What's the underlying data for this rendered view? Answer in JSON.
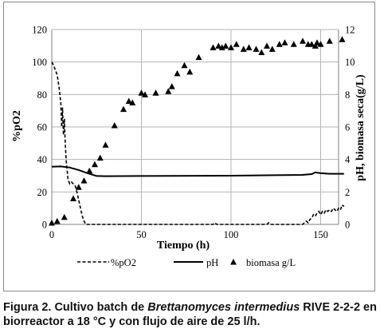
{
  "chart_data": {
    "type": "line",
    "xlabel": "Tiempo (h)",
    "ylabel_left": "%pO2",
    "ylabel_right": "pH, biomasa seca(g/L)",
    "xlim": [
      0,
      160
    ],
    "xticks": [
      "0",
      "50",
      "100",
      "150"
    ],
    "ylim_left": [
      0,
      120
    ],
    "yticks_left": [
      "0",
      "20",
      "40",
      "60",
      "80",
      "100",
      "120"
    ],
    "ylim_right": [
      0,
      12
    ],
    "yticks_right": [
      "0",
      "2",
      "4",
      "6",
      "8",
      "10",
      "12"
    ],
    "grid": true,
    "legend_position": "bottom",
    "series": [
      {
        "name": "%pO2",
        "axis": "left",
        "style": "dashed",
        "x": [
          0,
          1,
          2,
          3,
          4,
          5,
          5.5,
          6,
          6.5,
          7,
          7.5,
          8,
          9,
          10,
          11,
          12,
          13,
          14,
          15,
          16,
          17,
          18,
          19,
          20,
          25,
          30,
          40,
          60,
          80,
          90,
          91,
          92,
          100,
          110,
          120,
          121,
          122,
          130,
          140,
          142,
          143,
          144,
          145,
          146,
          147,
          148,
          149,
          150,
          151,
          152,
          153,
          154,
          155,
          156,
          157,
          158,
          159,
          160,
          161,
          162,
          163
        ],
        "y": [
          100,
          98,
          95,
          92,
          85,
          75,
          60,
          72,
          55,
          65,
          50,
          40,
          28,
          25,
          26,
          25,
          24,
          20,
          15,
          10,
          5,
          2,
          0,
          0,
          0,
          0,
          0,
          0,
          0,
          0,
          1,
          0,
          0,
          0,
          0,
          1,
          0,
          0,
          0,
          2,
          1,
          3,
          4,
          6,
          5,
          7,
          8,
          6,
          8,
          7,
          9,
          8,
          9,
          8,
          10,
          9,
          8,
          10,
          9,
          12,
          11
        ]
      },
      {
        "name": "pH",
        "axis": "right",
        "style": "solid",
        "x": [
          0,
          5,
          10,
          15,
          20,
          25,
          30,
          50,
          100,
          140,
          145,
          147,
          150,
          155,
          163
        ],
        "y": [
          3.55,
          3.57,
          3.5,
          3.35,
          3.15,
          2.98,
          2.97,
          2.98,
          3.0,
          3.05,
          3.1,
          3.2,
          3.15,
          3.12,
          3.12
        ]
      },
      {
        "name": "biomasa g/L",
        "axis": "right",
        "style": "marker",
        "marker": "triangle",
        "x": [
          0,
          3,
          7,
          12,
          15,
          18,
          21,
          24,
          27,
          30,
          35,
          40,
          43,
          45,
          50,
          52,
          58,
          65,
          67,
          70,
          74,
          77,
          82,
          90,
          93,
          95,
          97,
          100,
          103,
          107,
          110,
          114,
          117,
          120,
          123,
          127,
          130,
          135,
          140,
          143,
          145,
          147,
          148,
          150,
          155,
          162
        ],
        "y": [
          0.1,
          0.2,
          0.45,
          1.6,
          2.3,
          2.7,
          3.3,
          3.7,
          4.1,
          4.9,
          6.1,
          7.1,
          7.6,
          7.5,
          8.1,
          8.0,
          8.1,
          8.2,
          8.5,
          9.3,
          9.8,
          9.4,
          10.3,
          10.9,
          11.0,
          10.9,
          11.0,
          10.9,
          11.1,
          10.8,
          10.9,
          10.8,
          10.6,
          11.0,
          10.8,
          11.1,
          11.2,
          11.1,
          11.3,
          11.1,
          11.1,
          11.0,
          11.2,
          11.1,
          11.3,
          11.4
        ]
      }
    ]
  },
  "caption": {
    "prefix": "Figura 2. Cultivo batch de ",
    "species": "Brettanomyces intermedius",
    "suffix": " RIVE 2-2-2 en biorreactor a 18 °C y con flujo de aire de 25 l/h."
  },
  "colors": {
    "series": "#000000",
    "grid": "#b4b4b4",
    "axis": "#7f7f7f"
  }
}
